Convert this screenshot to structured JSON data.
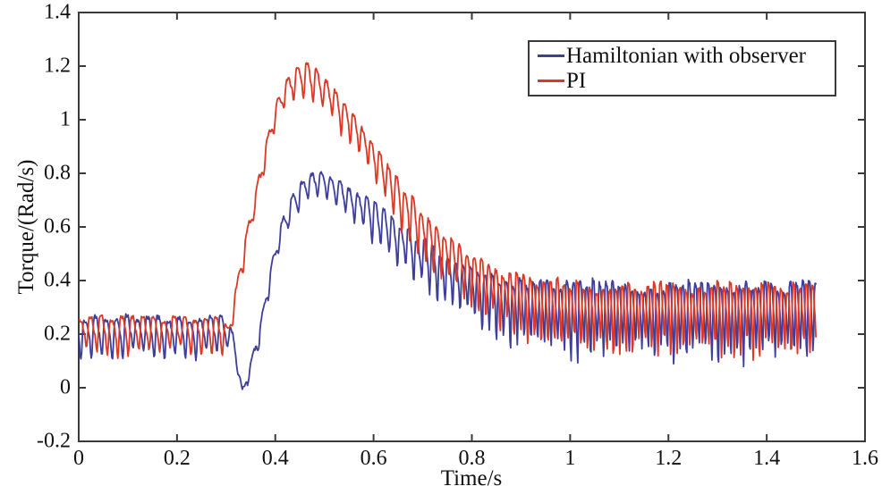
{
  "figure": {
    "background": "#ffffff",
    "axis_color": "#3a3a3a",
    "text_color": "#111111"
  },
  "chart_data": {
    "type": "line",
    "title": "",
    "xlabel": "Time/s",
    "ylabel": "Torque/(Rad/s)",
    "xlim": [
      0,
      1.6
    ],
    "ylim": [
      -0.2,
      1.4
    ],
    "xtick_labels": [
      "0",
      "0.2",
      "0.4",
      "0.6",
      "0.8",
      "1",
      "1.2",
      "1.4",
      "1.6"
    ],
    "ytick_labels": [
      "-0.2",
      "0",
      "0.2",
      "0.4",
      "0.6",
      "0.8",
      "1",
      "1.2",
      "1.4"
    ],
    "grid": false,
    "legend_position": "top-right",
    "ripple_harmonics": [
      1,
      0.33,
      0.18
    ],
    "freq_keypoints_hz": [
      [
        0,
        47
      ],
      [
        0.33,
        47
      ],
      [
        0.5,
        52
      ],
      [
        0.7,
        62
      ],
      [
        0.9,
        72
      ],
      [
        1.1,
        77
      ],
      [
        1.5,
        78
      ]
    ],
    "series": [
      {
        "name": "Hamiltonian with observer",
        "color": "#3e3e9c",
        "t_end": 1.5,
        "phase": 3.3,
        "noise_seed": 7,
        "mean_keypoints": [
          [
            0,
            0.21
          ],
          [
            0.3,
            0.21
          ],
          [
            0.315,
            0.17
          ],
          [
            0.333,
            -0.02
          ],
          [
            0.35,
            0.08
          ],
          [
            0.37,
            0.22
          ],
          [
            0.39,
            0.42
          ],
          [
            0.41,
            0.57
          ],
          [
            0.43,
            0.66
          ],
          [
            0.45,
            0.73
          ],
          [
            0.47,
            0.765
          ],
          [
            0.5,
            0.765
          ],
          [
            0.53,
            0.73
          ],
          [
            0.57,
            0.68
          ],
          [
            0.61,
            0.62
          ],
          [
            0.65,
            0.555
          ],
          [
            0.69,
            0.5
          ],
          [
            0.73,
            0.45
          ],
          [
            0.77,
            0.41
          ],
          [
            0.81,
            0.37
          ],
          [
            0.85,
            0.34
          ],
          [
            0.89,
            0.315
          ],
          [
            0.94,
            0.3
          ],
          [
            1.0,
            0.29
          ],
          [
            1.1,
            0.285
          ],
          [
            1.5,
            0.285
          ]
        ],
        "amp_keypoints": [
          [
            0,
            0.075
          ],
          [
            0.3,
            0.07
          ],
          [
            0.33,
            0.02
          ],
          [
            0.37,
            0.04
          ],
          [
            0.42,
            0.05
          ],
          [
            0.47,
            0.055
          ],
          [
            0.55,
            0.065
          ],
          [
            0.65,
            0.085
          ],
          [
            0.75,
            0.1
          ],
          [
            0.85,
            0.12
          ],
          [
            0.95,
            0.135
          ],
          [
            1.1,
            0.14
          ],
          [
            1.5,
            0.14
          ]
        ]
      },
      {
        "name": "PI",
        "color": "#dc3826",
        "t_end": 1.5,
        "phase": 0,
        "noise_seed": 13,
        "mean_keypoints": [
          [
            0,
            0.215
          ],
          [
            0.295,
            0.215
          ],
          [
            0.303,
            0.19
          ],
          [
            0.315,
            0.3
          ],
          [
            0.33,
            0.45
          ],
          [
            0.345,
            0.58
          ],
          [
            0.36,
            0.7
          ],
          [
            0.375,
            0.83
          ],
          [
            0.39,
            0.95
          ],
          [
            0.405,
            1.04
          ],
          [
            0.42,
            1.1
          ],
          [
            0.44,
            1.145
          ],
          [
            0.46,
            1.16
          ],
          [
            0.48,
            1.14
          ],
          [
            0.51,
            1.09
          ],
          [
            0.54,
            1.02
          ],
          [
            0.57,
            0.95
          ],
          [
            0.6,
            0.86
          ],
          [
            0.64,
            0.74
          ],
          [
            0.68,
            0.64
          ],
          [
            0.72,
            0.555
          ],
          [
            0.76,
            0.485
          ],
          [
            0.8,
            0.43
          ],
          [
            0.84,
            0.385
          ],
          [
            0.88,
            0.35
          ],
          [
            0.92,
            0.325
          ],
          [
            0.96,
            0.31
          ],
          [
            1.0,
            0.3
          ],
          [
            1.1,
            0.29
          ],
          [
            1.5,
            0.29
          ]
        ],
        "amp_keypoints": [
          [
            0,
            0.07
          ],
          [
            0.295,
            0.065
          ],
          [
            0.32,
            0.035
          ],
          [
            0.37,
            0.045
          ],
          [
            0.42,
            0.06
          ],
          [
            0.47,
            0.07
          ],
          [
            0.55,
            0.075
          ],
          [
            0.65,
            0.085
          ],
          [
            0.75,
            0.095
          ],
          [
            0.85,
            0.11
          ],
          [
            0.95,
            0.125
          ],
          [
            1.1,
            0.13
          ],
          [
            1.5,
            0.13
          ]
        ]
      }
    ]
  },
  "legend": {
    "entries": [
      {
        "label": "Hamiltonian with observer",
        "color": "#3e3e9c"
      },
      {
        "label": "PI",
        "color": "#dc3826"
      }
    ]
  }
}
